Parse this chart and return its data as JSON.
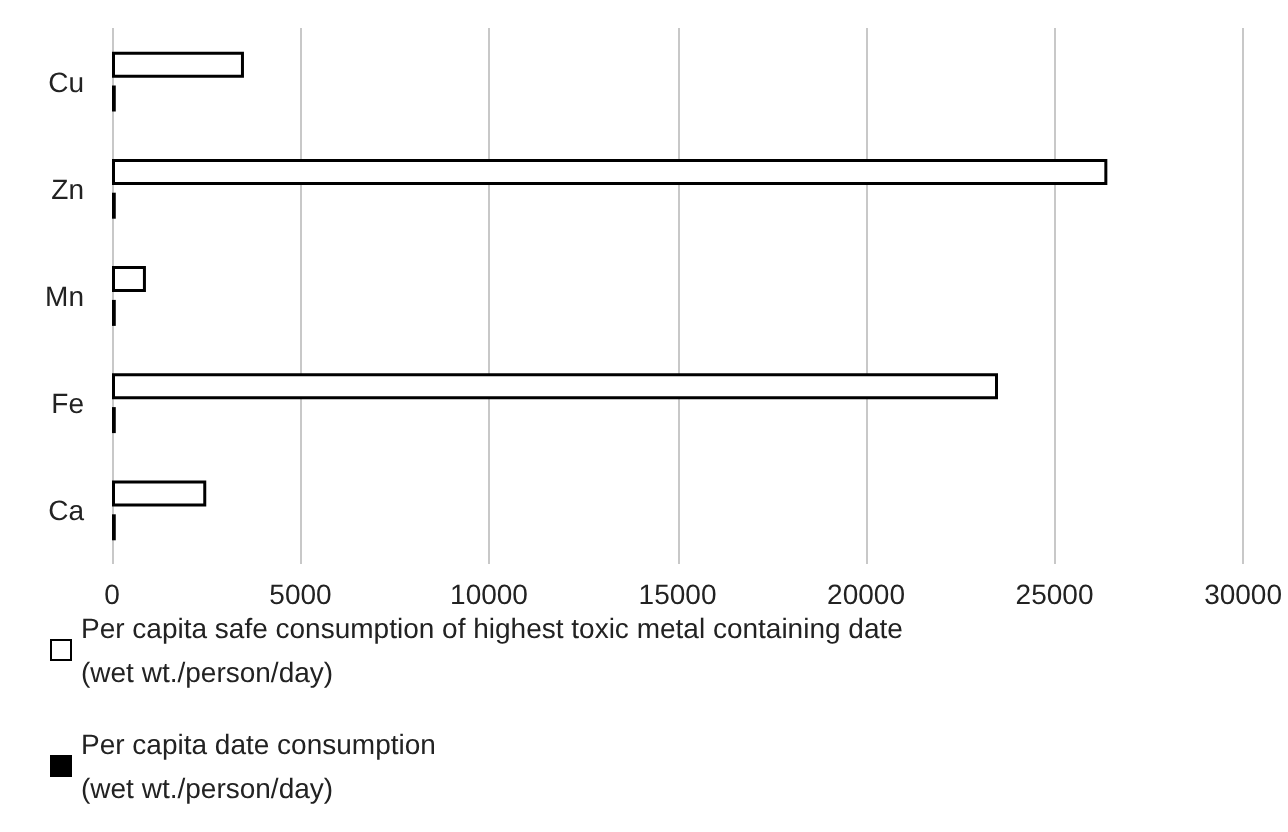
{
  "chart_data": {
    "type": "bar",
    "orientation": "horizontal",
    "categories": [
      "Cu",
      "Zn",
      "Mn",
      "Fe",
      "Ca"
    ],
    "series": [
      {
        "name": "Per capita safe consumption of highest toxic metal containing date (wet wt./person/day)",
        "color": "#ffffff",
        "values": [
          3500,
          26400,
          900,
          23500,
          2500
        ]
      },
      {
        "name": "Per capita date consumption (wet wt./person/day)",
        "color": "#000000",
        "values": [
          100,
          100,
          100,
          100,
          100
        ]
      }
    ],
    "xlim": [
      0,
      30000
    ],
    "xticks": [
      0,
      5000,
      10000,
      15000,
      20000,
      25000,
      30000
    ],
    "grid": "x",
    "legend": "bottom"
  }
}
